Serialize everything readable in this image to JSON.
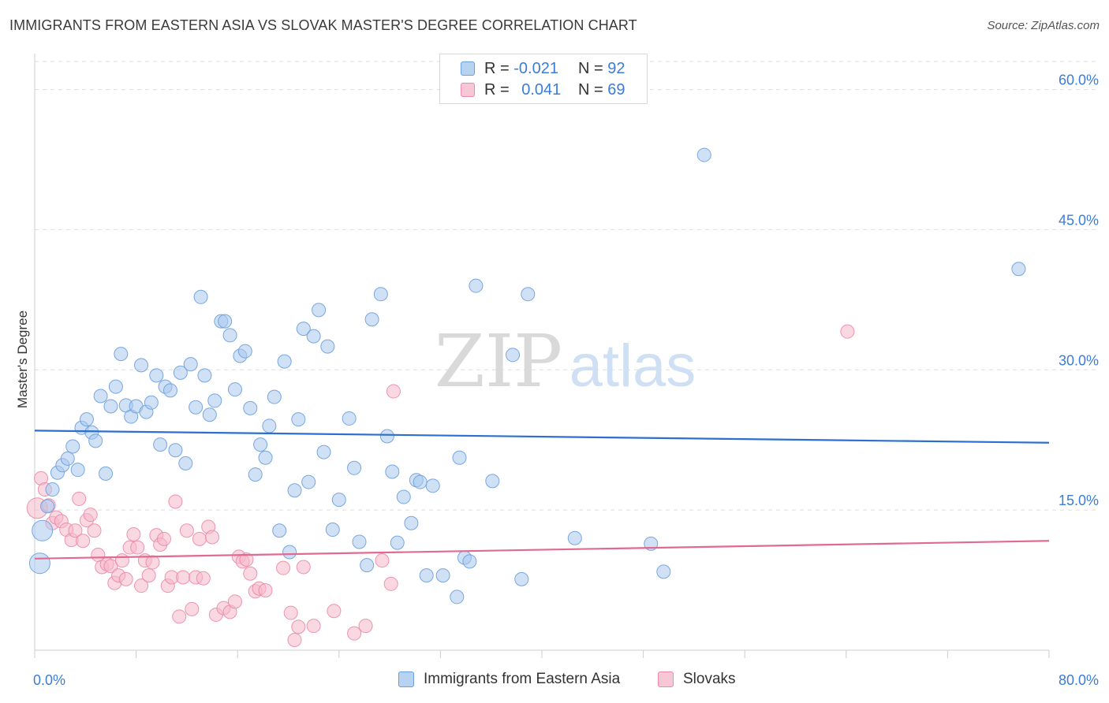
{
  "title": "IMMIGRANTS FROM EASTERN ASIA VS SLOVAK MASTER'S DEGREE CORRELATION CHART",
  "source": "Source: ZipAtlas.com",
  "watermark": {
    "zip": "ZIP",
    "atlas": "atlas"
  },
  "legend": {
    "series1": {
      "r_label": "R = ",
      "r_value": "-0.021",
      "n_label": "N = ",
      "n_value": "92"
    },
    "series2": {
      "r_label": "R = ",
      "r_value": "0.041",
      "n_label": "N = ",
      "n_value": "69"
    }
  },
  "bottom_legend": {
    "series1": "Immigrants from Eastern Asia",
    "series2": "Slovaks"
  },
  "colors": {
    "blue_fill": "#a9c8ef",
    "blue_stroke": "#6a9fde",
    "blue_line": "#2c6fce",
    "pink_fill": "#f6b8cb",
    "pink_stroke": "#eb8aa9",
    "pink_line": "#e06a91",
    "axis_text": "#3a7dd8",
    "grid": "#dddddd"
  },
  "chart_data": {
    "type": "scatter",
    "title": "IMMIGRANTS FROM EASTERN ASIA VS SLOVAK MASTER'S DEGREE CORRELATION CHART",
    "xlabel": "",
    "ylabel": "Master's Degree",
    "xlim": [
      0,
      80
    ],
    "ylim": [
      0,
      63
    ],
    "x_tick_labels": [
      "0.0%",
      "80.0%"
    ],
    "y_ticks": [
      15,
      30,
      45,
      60
    ],
    "y_tick_labels": [
      "15.0%",
      "30.0%",
      "45.0%",
      "60.0%"
    ],
    "grid": true,
    "series": [
      {
        "name": "Immigrants from Eastern Asia",
        "r": -0.021,
        "n": 92,
        "trend": {
          "x": [
            0,
            80
          ],
          "y": [
            23.5,
            22.2
          ]
        },
        "points": [
          {
            "x": 0.4,
            "y": 9.3,
            "s": "lg"
          },
          {
            "x": 0.6,
            "y": 12.8,
            "s": "lg"
          },
          {
            "x": 1.0,
            "y": 15.4
          },
          {
            "x": 1.4,
            "y": 17.2
          },
          {
            "x": 1.8,
            "y": 19.0
          },
          {
            "x": 2.2,
            "y": 19.8
          },
          {
            "x": 2.6,
            "y": 20.5
          },
          {
            "x": 3.0,
            "y": 21.8
          },
          {
            "x": 3.4,
            "y": 19.3
          },
          {
            "x": 3.7,
            "y": 23.8
          },
          {
            "x": 4.1,
            "y": 24.7
          },
          {
            "x": 4.5,
            "y": 23.3
          },
          {
            "x": 4.8,
            "y": 22.4
          },
          {
            "x": 5.2,
            "y": 27.2
          },
          {
            "x": 5.6,
            "y": 18.9
          },
          {
            "x": 6.0,
            "y": 26.1
          },
          {
            "x": 6.4,
            "y": 28.2
          },
          {
            "x": 6.8,
            "y": 31.7
          },
          {
            "x": 7.2,
            "y": 26.2
          },
          {
            "x": 7.6,
            "y": 25.0
          },
          {
            "x": 8.0,
            "y": 26.1
          },
          {
            "x": 8.4,
            "y": 30.5
          },
          {
            "x": 8.8,
            "y": 25.5
          },
          {
            "x": 9.2,
            "y": 26.5
          },
          {
            "x": 9.6,
            "y": 29.4
          },
          {
            "x": 9.9,
            "y": 22.0
          },
          {
            "x": 10.3,
            "y": 28.2
          },
          {
            "x": 10.7,
            "y": 27.8
          },
          {
            "x": 11.1,
            "y": 21.4
          },
          {
            "x": 11.5,
            "y": 29.7
          },
          {
            "x": 11.9,
            "y": 20.0
          },
          {
            "x": 12.3,
            "y": 30.6
          },
          {
            "x": 12.7,
            "y": 26.0
          },
          {
            "x": 13.1,
            "y": 37.8
          },
          {
            "x": 13.4,
            "y": 29.4
          },
          {
            "x": 13.8,
            "y": 25.2
          },
          {
            "x": 14.2,
            "y": 26.7
          },
          {
            "x": 14.7,
            "y": 35.2
          },
          {
            "x": 15.0,
            "y": 35.2
          },
          {
            "x": 15.4,
            "y": 33.7
          },
          {
            "x": 15.8,
            "y": 27.9
          },
          {
            "x": 16.2,
            "y": 31.5
          },
          {
            "x": 16.6,
            "y": 32.0
          },
          {
            "x": 17.0,
            "y": 25.9
          },
          {
            "x": 17.4,
            "y": 18.8
          },
          {
            "x": 17.8,
            "y": 22.0
          },
          {
            "x": 18.2,
            "y": 20.6
          },
          {
            "x": 18.5,
            "y": 24.0
          },
          {
            "x": 18.9,
            "y": 27.1
          },
          {
            "x": 19.3,
            "y": 12.8
          },
          {
            "x": 19.7,
            "y": 30.9
          },
          {
            "x": 20.1,
            "y": 10.5
          },
          {
            "x": 20.5,
            "y": 17.1
          },
          {
            "x": 20.8,
            "y": 24.7
          },
          {
            "x": 21.2,
            "y": 34.4
          },
          {
            "x": 21.6,
            "y": 18.0
          },
          {
            "x": 22.0,
            "y": 33.6
          },
          {
            "x": 22.4,
            "y": 36.4
          },
          {
            "x": 22.8,
            "y": 21.2
          },
          {
            "x": 23.1,
            "y": 32.5
          },
          {
            "x": 23.5,
            "y": 12.9
          },
          {
            "x": 24.0,
            "y": 16.1
          },
          {
            "x": 24.8,
            "y": 24.8
          },
          {
            "x": 25.2,
            "y": 19.5
          },
          {
            "x": 25.6,
            "y": 11.6
          },
          {
            "x": 26.2,
            "y": 9.1
          },
          {
            "x": 26.6,
            "y": 35.4
          },
          {
            "x": 27.3,
            "y": 38.1
          },
          {
            "x": 27.8,
            "y": 22.9
          },
          {
            "x": 28.2,
            "y": 19.1
          },
          {
            "x": 28.6,
            "y": 11.5
          },
          {
            "x": 29.1,
            "y": 16.4
          },
          {
            "x": 29.7,
            "y": 13.6
          },
          {
            "x": 30.1,
            "y": 18.2
          },
          {
            "x": 30.4,
            "y": 18.0
          },
          {
            "x": 30.9,
            "y": 8.0
          },
          {
            "x": 31.4,
            "y": 17.6
          },
          {
            "x": 32.2,
            "y": 8.0
          },
          {
            "x": 33.3,
            "y": 5.7
          },
          {
            "x": 33.5,
            "y": 20.6
          },
          {
            "x": 33.9,
            "y": 9.9
          },
          {
            "x": 34.3,
            "y": 9.5
          },
          {
            "x": 34.8,
            "y": 39.0
          },
          {
            "x": 36.1,
            "y": 18.1
          },
          {
            "x": 37.7,
            "y": 31.6
          },
          {
            "x": 38.4,
            "y": 7.6
          },
          {
            "x": 38.9,
            "y": 38.1
          },
          {
            "x": 42.6,
            "y": 12.0
          },
          {
            "x": 48.6,
            "y": 11.4
          },
          {
            "x": 49.6,
            "y": 8.4
          },
          {
            "x": 52.8,
            "y": 53.0
          },
          {
            "x": 77.6,
            "y": 40.8
          }
        ]
      },
      {
        "name": "Slovaks",
        "r": 0.041,
        "n": 69,
        "trend": {
          "x": [
            0,
            80
          ],
          "y": [
            9.8,
            11.7
          ]
        },
        "points": [
          {
            "x": 0.2,
            "y": 15.2,
            "s": "lg"
          },
          {
            "x": 0.5,
            "y": 18.4
          },
          {
            "x": 0.8,
            "y": 17.2
          },
          {
            "x": 1.1,
            "y": 15.5
          },
          {
            "x": 1.4,
            "y": 13.6
          },
          {
            "x": 1.7,
            "y": 14.2
          },
          {
            "x": 2.1,
            "y": 13.8
          },
          {
            "x": 2.5,
            "y": 12.9
          },
          {
            "x": 2.9,
            "y": 11.8
          },
          {
            "x": 3.2,
            "y": 12.8
          },
          {
            "x": 3.5,
            "y": 16.2
          },
          {
            "x": 3.8,
            "y": 11.7
          },
          {
            "x": 4.1,
            "y": 13.9
          },
          {
            "x": 4.4,
            "y": 14.5
          },
          {
            "x": 4.7,
            "y": 12.8
          },
          {
            "x": 5.0,
            "y": 10.2
          },
          {
            "x": 5.3,
            "y": 8.9
          },
          {
            "x": 5.7,
            "y": 9.2
          },
          {
            "x": 6.0,
            "y": 9.0
          },
          {
            "x": 6.3,
            "y": 7.2
          },
          {
            "x": 6.6,
            "y": 8.0
          },
          {
            "x": 6.9,
            "y": 9.6
          },
          {
            "x": 7.2,
            "y": 7.6
          },
          {
            "x": 7.5,
            "y": 11.0
          },
          {
            "x": 7.8,
            "y": 12.4
          },
          {
            "x": 8.1,
            "y": 11.0
          },
          {
            "x": 8.4,
            "y": 6.9
          },
          {
            "x": 8.7,
            "y": 9.6
          },
          {
            "x": 9.0,
            "y": 8.0
          },
          {
            "x": 9.3,
            "y": 9.4
          },
          {
            "x": 9.6,
            "y": 12.3
          },
          {
            "x": 9.9,
            "y": 11.3
          },
          {
            "x": 10.2,
            "y": 11.9
          },
          {
            "x": 10.5,
            "y": 6.9
          },
          {
            "x": 10.8,
            "y": 7.8
          },
          {
            "x": 11.1,
            "y": 15.9
          },
          {
            "x": 11.4,
            "y": 3.6
          },
          {
            "x": 11.7,
            "y": 7.8
          },
          {
            "x": 12.0,
            "y": 12.8
          },
          {
            "x": 12.4,
            "y": 4.4
          },
          {
            "x": 12.7,
            "y": 7.8
          },
          {
            "x": 13.0,
            "y": 11.9
          },
          {
            "x": 13.3,
            "y": 7.7
          },
          {
            "x": 13.7,
            "y": 13.2
          },
          {
            "x": 14.0,
            "y": 12.1
          },
          {
            "x": 14.3,
            "y": 3.8
          },
          {
            "x": 14.9,
            "y": 4.5
          },
          {
            "x": 15.4,
            "y": 4.1
          },
          {
            "x": 15.8,
            "y": 5.2
          },
          {
            "x": 16.1,
            "y": 10.0
          },
          {
            "x": 16.4,
            "y": 9.5
          },
          {
            "x": 16.7,
            "y": 9.7
          },
          {
            "x": 17.0,
            "y": 8.2
          },
          {
            "x": 17.4,
            "y": 6.3
          },
          {
            "x": 17.7,
            "y": 6.6
          },
          {
            "x": 18.2,
            "y": 6.4
          },
          {
            "x": 19.6,
            "y": 8.8
          },
          {
            "x": 20.2,
            "y": 4.0
          },
          {
            "x": 20.5,
            "y": 1.1
          },
          {
            "x": 20.8,
            "y": 2.5
          },
          {
            "x": 21.2,
            "y": 8.9
          },
          {
            "x": 22.0,
            "y": 2.6
          },
          {
            "x": 23.6,
            "y": 4.2
          },
          {
            "x": 25.2,
            "y": 1.8
          },
          {
            "x": 26.1,
            "y": 2.6
          },
          {
            "x": 27.4,
            "y": 9.6
          },
          {
            "x": 28.1,
            "y": 7.1
          },
          {
            "x": 28.3,
            "y": 27.7
          },
          {
            "x": 64.1,
            "y": 34.1
          }
        ]
      }
    ]
  }
}
